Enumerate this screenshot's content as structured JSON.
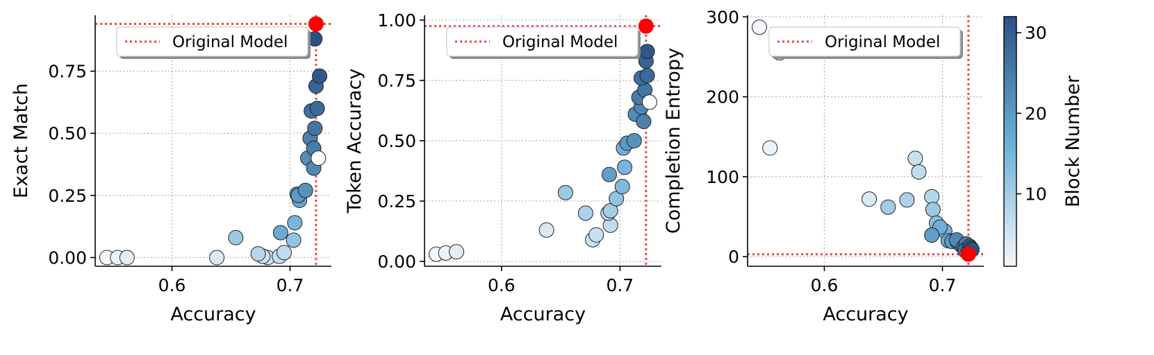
{
  "chart_data": [
    {
      "type": "scatter",
      "xlabel": "Accuracy",
      "ylabel": "Exact Match",
      "xlim": [
        0.535,
        0.735
      ],
      "ylim": [
        -0.035,
        0.975
      ],
      "xticks": [
        0.6,
        0.7
      ],
      "xtick_labels": [
        "0.6",
        "0.7"
      ],
      "yticks": [
        0.0,
        0.25,
        0.5,
        0.75
      ],
      "ytick_labels": [
        "0.00",
        "0.25",
        "0.50",
        "0.75"
      ],
      "grid": true,
      "legend": {
        "position": "top-right",
        "entries": [
          "Original Model"
        ]
      },
      "reference": {
        "name": "Original Model",
        "x": 0.722,
        "y": 0.94
      },
      "points": [
        {
          "x": 0.545,
          "y": 0.0,
          "block": 1
        },
        {
          "x": 0.554,
          "y": 0.0,
          "block": 2
        },
        {
          "x": 0.562,
          "y": 0.0,
          "block": 3
        },
        {
          "x": 0.638,
          "y": 0.0,
          "block": 4
        },
        {
          "x": 0.681,
          "y": 0.0,
          "block": 5
        },
        {
          "x": 0.677,
          "y": 0.005,
          "block": 5
        },
        {
          "x": 0.691,
          "y": 0.005,
          "block": 6
        },
        {
          "x": 0.695,
          "y": 0.02,
          "block": 7
        },
        {
          "x": 0.673,
          "y": 0.015,
          "block": 8
        },
        {
          "x": 0.654,
          "y": 0.08,
          "block": 11
        },
        {
          "x": 0.703,
          "y": 0.07,
          "block": 12
        },
        {
          "x": 0.704,
          "y": 0.14,
          "block": 15
        },
        {
          "x": 0.692,
          "y": 0.1,
          "block": 17
        },
        {
          "x": 0.708,
          "y": 0.23,
          "block": 18
        },
        {
          "x": 0.706,
          "y": 0.255,
          "block": 19
        },
        {
          "x": 0.707,
          "y": 0.25,
          "block": 20
        },
        {
          "x": 0.713,
          "y": 0.27,
          "block": 21
        },
        {
          "x": 0.715,
          "y": 0.4,
          "block": 22
        },
        {
          "x": 0.72,
          "y": 0.36,
          "block": 23
        },
        {
          "x": 0.717,
          "y": 0.48,
          "block": 24
        },
        {
          "x": 0.72,
          "y": 0.44,
          "block": 25
        },
        {
          "x": 0.721,
          "y": 0.52,
          "block": 26
        },
        {
          "x": 0.718,
          "y": 0.59,
          "block": 27
        },
        {
          "x": 0.723,
          "y": 0.6,
          "block": 28
        },
        {
          "x": 0.722,
          "y": 0.69,
          "block": 29
        },
        {
          "x": 0.725,
          "y": 0.73,
          "block": 31
        },
        {
          "x": 0.721,
          "y": 0.88,
          "block": 32
        },
        {
          "x": 0.724,
          "y": 0.4,
          "block": 0
        }
      ]
    },
    {
      "type": "scatter",
      "xlabel": "Accuracy",
      "ylabel": "Token Accuracy",
      "xlim": [
        0.535,
        0.735
      ],
      "ylim": [
        -0.02,
        1.02
      ],
      "xticks": [
        0.6,
        0.7
      ],
      "xtick_labels": [
        "0.6",
        "0.7"
      ],
      "yticks": [
        0.0,
        0.25,
        0.5,
        0.75,
        1.0
      ],
      "ytick_labels": [
        "0.00",
        "0.25",
        "0.50",
        "0.75",
        "1.00"
      ],
      "grid": true,
      "legend": {
        "position": "top-right",
        "entries": [
          "Original Model"
        ]
      },
      "reference": {
        "name": "Original Model",
        "x": 0.722,
        "y": 0.975
      },
      "points": [
        {
          "x": 0.545,
          "y": 0.03,
          "block": 1
        },
        {
          "x": 0.553,
          "y": 0.035,
          "block": 2
        },
        {
          "x": 0.562,
          "y": 0.04,
          "block": 3
        },
        {
          "x": 0.638,
          "y": 0.13,
          "block": 4
        },
        {
          "x": 0.677,
          "y": 0.09,
          "block": 5
        },
        {
          "x": 0.68,
          "y": 0.11,
          "block": 6
        },
        {
          "x": 0.692,
          "y": 0.15,
          "block": 7
        },
        {
          "x": 0.69,
          "y": 0.2,
          "block": 8
        },
        {
          "x": 0.671,
          "y": 0.2,
          "block": 9
        },
        {
          "x": 0.692,
          "y": 0.21,
          "block": 10
        },
        {
          "x": 0.654,
          "y": 0.285,
          "block": 11
        },
        {
          "x": 0.697,
          "y": 0.26,
          "block": 12
        },
        {
          "x": 0.702,
          "y": 0.31,
          "block": 14
        },
        {
          "x": 0.704,
          "y": 0.39,
          "block": 15
        },
        {
          "x": 0.703,
          "y": 0.47,
          "block": 16
        },
        {
          "x": 0.691,
          "y": 0.36,
          "block": 19
        },
        {
          "x": 0.706,
          "y": 0.49,
          "block": 20
        },
        {
          "x": 0.712,
          "y": 0.5,
          "block": 21
        },
        {
          "x": 0.713,
          "y": 0.61,
          "block": 22
        },
        {
          "x": 0.718,
          "y": 0.64,
          "block": 23
        },
        {
          "x": 0.72,
          "y": 0.58,
          "block": 24
        },
        {
          "x": 0.716,
          "y": 0.68,
          "block": 25
        },
        {
          "x": 0.721,
          "y": 0.71,
          "block": 26
        },
        {
          "x": 0.718,
          "y": 0.76,
          "block": 27
        },
        {
          "x": 0.723,
          "y": 0.77,
          "block": 28
        },
        {
          "x": 0.722,
          "y": 0.83,
          "block": 29
        },
        {
          "x": 0.723,
          "y": 0.87,
          "block": 31
        },
        {
          "x": 0.725,
          "y": 0.66,
          "block": 0
        }
      ]
    },
    {
      "type": "scatter",
      "xlabel": "Accuracy",
      "ylabel": "Completion Entropy",
      "xlim": [
        0.535,
        0.735
      ],
      "ylim": [
        -12,
        302
      ],
      "xticks": [
        0.6,
        0.7
      ],
      "xtick_labels": [
        "0.6",
        "0.7"
      ],
      "yticks": [
        0,
        100,
        200,
        300
      ],
      "ytick_labels": [
        "0",
        "100",
        "200",
        "300"
      ],
      "grid": true,
      "legend": {
        "position": "top-right",
        "entries": [
          "Original Model"
        ]
      },
      "reference": {
        "name": "Original Model",
        "x": 0.722,
        "y": 3
      },
      "points": [
        {
          "x": 0.545,
          "y": 287,
          "block": 1
        },
        {
          "x": 0.554,
          "y": 136,
          "block": 2
        },
        {
          "x": 0.562,
          "y": 255,
          "block": 3
        },
        {
          "x": 0.638,
          "y": 72,
          "block": 4
        },
        {
          "x": 0.677,
          "y": 123,
          "block": 6
        },
        {
          "x": 0.68,
          "y": 106,
          "block": 7
        },
        {
          "x": 0.691,
          "y": 75,
          "block": 8
        },
        {
          "x": 0.67,
          "y": 71,
          "block": 9
        },
        {
          "x": 0.654,
          "y": 62,
          "block": 10
        },
        {
          "x": 0.692,
          "y": 59,
          "block": 11
        },
        {
          "x": 0.695,
          "y": 42,
          "block": 13
        },
        {
          "x": 0.702,
          "y": 32,
          "block": 15
        },
        {
          "x": 0.698,
          "y": 37,
          "block": 16
        },
        {
          "x": 0.705,
          "y": 20,
          "block": 17
        },
        {
          "x": 0.691,
          "y": 27,
          "block": 19
        },
        {
          "x": 0.708,
          "y": 19,
          "block": 20
        },
        {
          "x": 0.713,
          "y": 18,
          "block": 21
        },
        {
          "x": 0.716,
          "y": 14,
          "block": 22
        },
        {
          "x": 0.712,
          "y": 21,
          "block": 23
        },
        {
          "x": 0.718,
          "y": 12,
          "block": 24
        },
        {
          "x": 0.72,
          "y": 16,
          "block": 25
        },
        {
          "x": 0.721,
          "y": 10,
          "block": 26
        },
        {
          "x": 0.719,
          "y": 8,
          "block": 27
        },
        {
          "x": 0.723,
          "y": 13,
          "block": 28
        },
        {
          "x": 0.722,
          "y": 6,
          "block": 29
        },
        {
          "x": 0.724,
          "y": 11,
          "block": 31
        },
        {
          "x": 0.725,
          "y": 9,
          "block": 32
        }
      ]
    }
  ],
  "colorbar": {
    "label": "Block Number",
    "min": 1,
    "max": 32,
    "ticks": [
      10,
      20,
      30
    ],
    "tick_labels": [
      "10",
      "20",
      "30"
    ],
    "color_low": "#f4f8fc",
    "color_mid": "#6aaed6",
    "color_high": "#2b5285"
  },
  "colors": {
    "reference": "#ff0000",
    "reference_line": "#e8474a",
    "grid": "#b0b0b0",
    "marker_edge": "#222222"
  }
}
